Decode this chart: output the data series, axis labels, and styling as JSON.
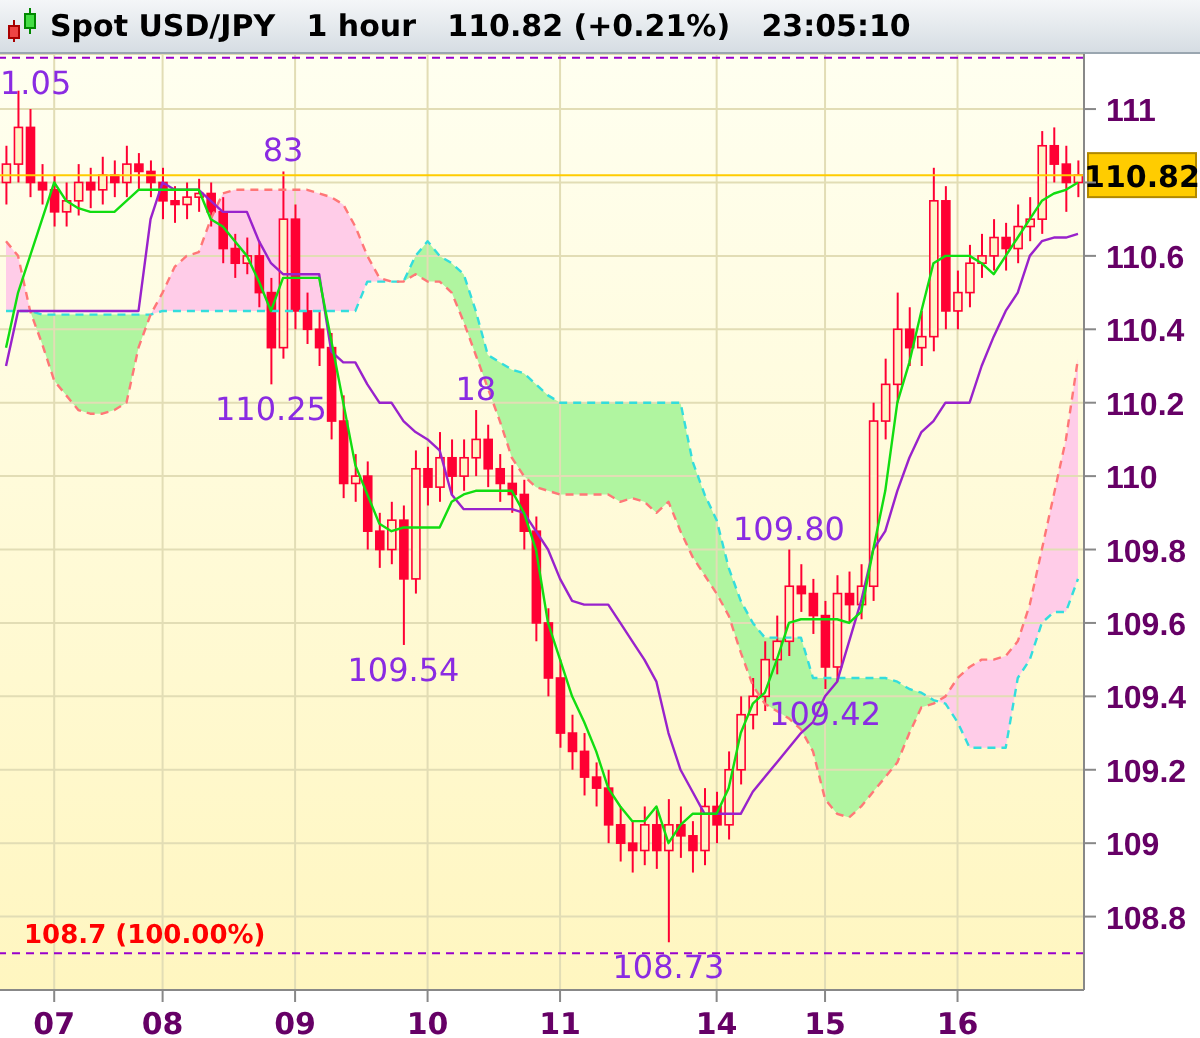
{
  "chart_data": {
    "type": "candlestick",
    "title": "Spot USD/JPY   1 hour   110.82 (+0.21%)   23:05:10",
    "color": "#ff0033",
    "categories": [
      null,
      null,
      null,
      null,
      "07",
      null,
      null,
      null,
      null,
      null,
      null,
      null,
      null,
      "08",
      null,
      null,
      null,
      null,
      null,
      null,
      null,
      null,
      null,
      null,
      "09",
      null,
      null,
      null,
      null,
      null,
      null,
      null,
      null,
      null,
      null,
      "10",
      null,
      null,
      null,
      null,
      null,
      null,
      null,
      null,
      null,
      null,
      "11",
      null,
      null,
      null,
      null,
      null,
      null,
      null,
      null,
      null,
      null,
      null,
      null,
      "14",
      null,
      null,
      null,
      null,
      null,
      null,
      null,
      null,
      "15",
      null,
      null,
      null,
      null,
      null,
      null,
      null,
      null,
      null,
      null,
      "16",
      null,
      null,
      null,
      null,
      null,
      null,
      null,
      null,
      null,
      null
    ],
    "ohlc": [
      [
        110.8,
        110.9,
        110.74,
        110.85
      ],
      [
        110.85,
        111.05,
        110.8,
        110.95
      ],
      [
        110.95,
        111.0,
        110.76,
        110.8
      ],
      [
        110.8,
        110.85,
        110.74,
        110.78
      ],
      [
        110.78,
        110.82,
        110.68,
        110.72
      ],
      [
        110.72,
        110.8,
        110.68,
        110.75
      ],
      [
        110.75,
        110.85,
        110.71,
        110.8
      ],
      [
        110.8,
        110.84,
        110.73,
        110.78
      ],
      [
        110.78,
        110.87,
        110.74,
        110.82
      ],
      [
        110.82,
        110.86,
        110.76,
        110.8
      ],
      [
        110.8,
        110.9,
        110.76,
        110.85
      ],
      [
        110.85,
        110.88,
        110.78,
        110.83
      ],
      [
        110.83,
        110.86,
        110.76,
        110.8
      ],
      [
        110.8,
        110.84,
        110.7,
        110.75
      ],
      [
        110.75,
        110.79,
        110.69,
        110.74
      ],
      [
        110.74,
        110.8,
        110.7,
        110.76
      ],
      [
        110.76,
        110.81,
        110.72,
        110.77
      ],
      [
        110.77,
        110.8,
        110.68,
        110.72
      ],
      [
        110.72,
        110.76,
        110.58,
        110.62
      ],
      [
        110.62,
        110.66,
        110.54,
        110.58
      ],
      [
        110.58,
        110.65,
        110.55,
        110.6
      ],
      [
        110.6,
        110.64,
        110.46,
        110.5
      ],
      [
        110.5,
        110.54,
        110.25,
        110.35
      ],
      [
        110.35,
        110.83,
        110.32,
        110.7
      ],
      [
        110.7,
        110.74,
        110.4,
        110.45
      ],
      [
        110.45,
        110.5,
        110.36,
        110.4
      ],
      [
        110.4,
        110.45,
        110.3,
        110.35
      ],
      [
        110.35,
        110.39,
        110.1,
        110.15
      ],
      [
        110.15,
        110.22,
        109.94,
        109.98
      ],
      [
        109.98,
        110.06,
        109.93,
        110.0
      ],
      [
        110.0,
        110.04,
        109.8,
        109.85
      ],
      [
        109.85,
        109.9,
        109.75,
        109.8
      ],
      [
        109.8,
        109.93,
        109.76,
        109.88
      ],
      [
        109.88,
        109.92,
        109.54,
        109.72
      ],
      [
        109.72,
        110.07,
        109.68,
        110.02
      ],
      [
        110.02,
        110.08,
        109.92,
        109.97
      ],
      [
        109.97,
        110.12,
        109.93,
        110.05
      ],
      [
        110.05,
        110.1,
        109.95,
        110.0
      ],
      [
        110.0,
        110.1,
        109.96,
        110.05
      ],
      [
        110.05,
        110.18,
        110.0,
        110.1
      ],
      [
        110.1,
        110.14,
        109.97,
        110.02
      ],
      [
        110.02,
        110.06,
        109.93,
        109.98
      ],
      [
        109.98,
        110.03,
        109.9,
        109.95
      ],
      [
        109.95,
        109.99,
        109.8,
        109.85
      ],
      [
        109.85,
        109.89,
        109.55,
        109.6
      ],
      [
        109.6,
        109.64,
        109.4,
        109.45
      ],
      [
        109.45,
        109.5,
        109.26,
        109.3
      ],
      [
        109.3,
        109.35,
        109.2,
        109.25
      ],
      [
        109.25,
        109.3,
        109.13,
        109.18
      ],
      [
        109.18,
        109.22,
        109.1,
        109.15
      ],
      [
        109.15,
        109.2,
        109.0,
        109.05
      ],
      [
        109.05,
        109.1,
        108.95,
        109.0
      ],
      [
        109.0,
        109.06,
        108.92,
        108.98
      ],
      [
        108.98,
        109.1,
        108.94,
        109.05
      ],
      [
        109.05,
        109.09,
        108.93,
        108.98
      ],
      [
        108.98,
        109.12,
        108.73,
        109.05
      ],
      [
        109.05,
        109.1,
        108.96,
        109.02
      ],
      [
        109.02,
        109.06,
        108.92,
        108.98
      ],
      [
        108.98,
        109.15,
        108.94,
        109.1
      ],
      [
        109.1,
        109.14,
        109.0,
        109.05
      ],
      [
        109.05,
        109.25,
        109.01,
        109.2
      ],
      [
        109.2,
        109.4,
        109.16,
        109.35
      ],
      [
        109.35,
        109.45,
        109.31,
        109.4
      ],
      [
        109.4,
        109.55,
        109.36,
        109.5
      ],
      [
        109.5,
        109.62,
        109.46,
        109.55
      ],
      [
        109.55,
        109.8,
        109.51,
        109.7
      ],
      [
        109.7,
        109.76,
        109.63,
        109.68
      ],
      [
        109.68,
        109.72,
        109.57,
        109.62
      ],
      [
        109.62,
        109.66,
        109.42,
        109.48
      ],
      [
        109.48,
        109.73,
        109.44,
        109.68
      ],
      [
        109.68,
        109.74,
        109.6,
        109.65
      ],
      [
        109.65,
        109.76,
        109.61,
        109.7
      ],
      [
        109.7,
        110.2,
        109.66,
        110.15
      ],
      [
        110.15,
        110.32,
        110.1,
        110.25
      ],
      [
        110.25,
        110.5,
        110.2,
        110.4
      ],
      [
        110.4,
        110.46,
        110.3,
        110.35
      ],
      [
        110.35,
        110.45,
        110.3,
        110.38
      ],
      [
        110.38,
        110.84,
        110.34,
        110.75
      ],
      [
        110.75,
        110.79,
        110.4,
        110.45
      ],
      [
        110.45,
        110.56,
        110.4,
        110.5
      ],
      [
        110.5,
        110.63,
        110.46,
        110.58
      ],
      [
        110.58,
        110.66,
        110.54,
        110.6
      ],
      [
        110.6,
        110.7,
        110.56,
        110.65
      ],
      [
        110.65,
        110.69,
        110.56,
        110.62
      ],
      [
        110.62,
        110.74,
        110.58,
        110.68
      ],
      [
        110.68,
        110.76,
        110.64,
        110.7
      ],
      [
        110.7,
        110.94,
        110.66,
        110.9
      ],
      [
        110.9,
        110.95,
        110.8,
        110.85
      ],
      [
        110.85,
        110.9,
        110.72,
        110.8
      ],
      [
        110.8,
        110.86,
        110.76,
        110.82
      ]
    ],
    "series": [
      {
        "type": "line",
        "color": "#33dddd",
        "line_style": "dashed",
        "values": [
          110.45,
          110.45,
          110.45,
          110.44,
          110.44,
          110.44,
          110.44,
          110.44,
          110.44,
          110.44,
          110.44,
          110.44,
          110.44,
          110.45,
          110.45,
          110.45,
          110.45,
          110.45,
          110.45,
          110.45,
          110.45,
          110.45,
          110.45,
          110.45,
          110.45,
          110.45,
          110.45,
          110.45,
          110.45,
          110.45,
          110.53,
          110.53,
          110.53,
          110.53,
          110.6,
          110.64,
          110.6,
          110.58,
          110.55,
          110.45,
          110.33,
          110.31,
          110.29,
          110.28,
          110.25,
          110.22,
          110.2,
          110.2,
          110.2,
          110.2,
          110.2,
          110.2,
          110.2,
          110.2,
          110.2,
          110.2,
          110.2,
          110.04,
          109.95,
          109.88,
          109.75,
          109.66,
          109.6,
          109.56,
          109.56,
          109.56,
          109.56,
          109.45,
          109.45,
          109.45,
          109.45,
          109.45,
          109.45,
          109.45,
          109.44,
          109.42,
          109.41,
          109.39,
          109.38,
          109.33,
          109.26,
          109.26,
          109.26,
          109.26,
          109.45,
          109.5,
          109.6,
          109.63,
          109.63,
          109.72
        ]
      },
      {
        "type": "line",
        "color": "#ff7777",
        "line_style": "dashed",
        "values": [
          110.64,
          110.6,
          110.45,
          110.36,
          110.26,
          110.22,
          110.18,
          110.17,
          110.17,
          110.18,
          110.2,
          110.35,
          110.44,
          110.5,
          110.57,
          110.6,
          110.61,
          110.7,
          110.77,
          110.78,
          110.78,
          110.78,
          110.78,
          110.78,
          110.78,
          110.78,
          110.77,
          110.76,
          110.74,
          110.68,
          110.6,
          110.54,
          110.53,
          110.53,
          110.55,
          110.53,
          110.53,
          110.5,
          110.42,
          110.33,
          110.24,
          110.15,
          110.05,
          110.0,
          109.97,
          109.96,
          109.95,
          109.95,
          109.95,
          109.95,
          109.95,
          109.93,
          109.94,
          109.93,
          109.9,
          109.93,
          109.85,
          109.78,
          109.73,
          109.68,
          109.62,
          109.52,
          109.43,
          109.38,
          109.36,
          109.34,
          109.31,
          109.25,
          109.12,
          109.08,
          109.07,
          109.1,
          109.14,
          109.18,
          109.22,
          109.3,
          109.37,
          109.38,
          109.4,
          109.45,
          109.48,
          109.5,
          109.5,
          109.51,
          109.55,
          109.65,
          109.8,
          109.95,
          110.1,
          110.32
        ]
      },
      {
        "type": "line",
        "color": "#9922cc",
        "values": [
          110.3,
          110.45,
          110.45,
          110.45,
          110.45,
          110.45,
          110.45,
          110.45,
          110.45,
          110.45,
          110.45,
          110.45,
          110.7,
          110.8,
          110.78,
          110.78,
          110.78,
          110.75,
          110.72,
          110.72,
          110.72,
          110.64,
          110.58,
          110.55,
          110.55,
          110.55,
          110.55,
          110.34,
          110.31,
          110.31,
          110.25,
          110.2,
          110.2,
          110.15,
          110.12,
          110.1,
          110.07,
          109.95,
          109.91,
          109.91,
          109.91,
          109.91,
          109.91,
          109.9,
          109.85,
          109.8,
          109.72,
          109.66,
          109.65,
          109.65,
          109.65,
          109.6,
          109.55,
          109.5,
          109.44,
          109.3,
          109.2,
          109.14,
          109.08,
          109.08,
          109.08,
          109.08,
          109.14,
          109.18,
          109.22,
          109.26,
          109.3,
          109.33,
          109.4,
          109.44,
          109.55,
          109.66,
          109.8,
          109.85,
          109.96,
          110.05,
          110.12,
          110.15,
          110.2,
          110.2,
          110.2,
          110.3,
          110.38,
          110.45,
          110.5,
          110.6,
          110.64,
          110.65,
          110.65,
          110.66
        ]
      },
      {
        "type": "line",
        "color": "#11dd11",
        "values": [
          110.35,
          110.5,
          110.6,
          110.7,
          110.8,
          110.75,
          110.73,
          110.72,
          110.72,
          110.72,
          110.75,
          110.78,
          110.78,
          110.78,
          110.78,
          110.78,
          110.78,
          110.7,
          110.68,
          110.64,
          110.6,
          110.53,
          110.45,
          110.54,
          110.54,
          110.54,
          110.54,
          110.37,
          110.2,
          110.03,
          109.95,
          109.87,
          109.85,
          109.86,
          109.86,
          109.86,
          109.86,
          109.93,
          109.95,
          109.96,
          109.96,
          109.96,
          109.96,
          109.9,
          109.8,
          109.6,
          109.5,
          109.4,
          109.33,
          109.25,
          109.15,
          109.1,
          109.06,
          109.06,
          109.1,
          109.0,
          109.05,
          109.08,
          109.08,
          109.08,
          109.15,
          109.3,
          109.38,
          109.41,
          109.5,
          109.6,
          109.61,
          109.61,
          109.61,
          109.61,
          109.6,
          109.63,
          109.8,
          109.96,
          110.2,
          110.31,
          110.45,
          110.58,
          110.6,
          110.6,
          110.6,
          110.58,
          110.55,
          110.6,
          110.65,
          110.7,
          110.75,
          110.77,
          110.78,
          110.8
        ]
      }
    ],
    "ylim": [
      108.6,
      111.15
    ],
    "yticks": [
      108.8,
      109,
      109.2,
      109.4,
      109.6,
      109.8,
      110,
      110.2,
      110.4,
      110.6,
      {
        "value": 110.8,
        "label": null
      },
      111
    ],
    "grid": true,
    "legend": false,
    "ref_lines": [
      {
        "axis": "y",
        "value": 108.7,
        "label": "108.7 (100.00%)",
        "color": "#9900cc",
        "line_style": "dashed"
      },
      {
        "axis": "y",
        "value": 111.14,
        "color": "#9900cc",
        "line_style": "dashed"
      },
      {
        "axis": "y",
        "value": 110.82,
        "label": "110.82",
        "color": "#ffcc00",
        "line_style": "solid"
      }
    ],
    "annotations": [
      "1.05",
      {
        "text": "83",
        "y": 110.83
      },
      {
        "text": "110.25",
        "y": 110.25
      },
      {
        "text": "18",
        "y": 110.18
      },
      {
        "text": "109.54",
        "y": 109.54
      },
      {
        "text": "109.80",
        "y": 109.8
      },
      {
        "text": "109.42",
        "y": 109.42
      },
      {
        "text": "108.73",
        "y": 108.73
      }
    ]
  }
}
